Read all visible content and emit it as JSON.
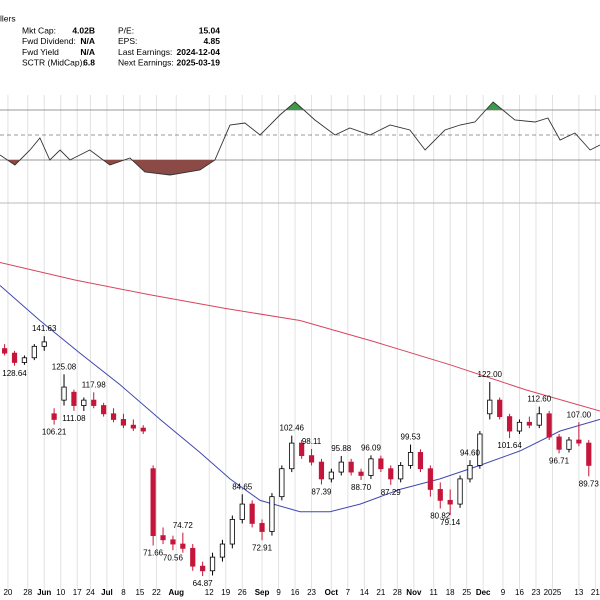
{
  "header": {
    "symbol_fragment": "llers",
    "stats_left": [
      {
        "label": "Mkt Cap:",
        "value": "4.02B"
      },
      {
        "label": "Fwd Dividend:",
        "value": "N/A"
      },
      {
        "label": "Fwd Yield",
        "value": "N/A"
      },
      {
        "label": "SCTR (MidCap):",
        "value": "6.8"
      }
    ],
    "stats_right": [
      {
        "label": "P/E:",
        "value": "15.04"
      },
      {
        "label": "EPS:",
        "value": "4.85"
      },
      {
        "label": "Last Earnings:",
        "value": "2024-12-04"
      },
      {
        "label": "Next Earnings:",
        "value": "2025-03-19"
      }
    ]
  },
  "chart_data": {
    "type": "candlestick",
    "x": [
      -1,
      2,
      5,
      8,
      11,
      14,
      17,
      20,
      23,
      26,
      29,
      32,
      35,
      38,
      41,
      44,
      47,
      50,
      53,
      56,
      59,
      62,
      65,
      68,
      71,
      74,
      77,
      80,
      83,
      86,
      89,
      92,
      95,
      98,
      101,
      104,
      107,
      110,
      113,
      116,
      119,
      122,
      125,
      128,
      131,
      134,
      137,
      140,
      143,
      146,
      149,
      152,
      155,
      158,
      161,
      164,
      167,
      170,
      173,
      176
    ],
    "open": [
      136,
      134,
      130,
      132,
      137,
      110,
      115,
      118,
      113,
      115,
      113,
      110,
      108,
      106,
      105,
      92,
      74,
      73,
      72,
      71,
      67,
      66,
      69,
      72,
      78,
      82,
      77,
      75,
      84,
      92,
      100,
      96,
      94,
      89,
      91,
      94,
      91,
      90,
      95,
      92,
      89,
      93,
      97,
      92,
      86,
      83,
      82,
      89,
      93,
      110,
      115,
      109,
      104,
      107,
      106,
      110,
      102,
      98,
      101,
      100
    ],
    "high": [
      138,
      135,
      133,
      138,
      141.63,
      112,
      125.08,
      119,
      116,
      117.98,
      114,
      112,
      110,
      108,
      106,
      93,
      76,
      74,
      74.72,
      72,
      68,
      70,
      73,
      79,
      84.65,
      83,
      78,
      85,
      93,
      102.46,
      101,
      98.11,
      95,
      92,
      95.88,
      95,
      92,
      96.09,
      96,
      93,
      94,
      99.53,
      98,
      93,
      88,
      86,
      90,
      94.6,
      104,
      122.0,
      116,
      110,
      108,
      109,
      112.6,
      111,
      103,
      102,
      107.0,
      101
    ],
    "low": [
      133,
      128.64,
      129,
      131,
      135,
      106.21,
      113,
      111.08,
      111,
      112,
      109,
      107,
      105,
      104,
      103,
      71.66,
      72,
      70.56,
      70,
      66,
      64.87,
      65,
      68,
      71,
      77,
      76,
      72.91,
      74,
      83,
      91,
      95,
      93,
      87.39,
      88,
      90,
      90,
      88.7,
      89,
      91,
      87.29,
      88,
      92,
      91,
      84,
      80.82,
      79.14,
      81,
      88,
      92,
      108,
      108,
      101.64,
      103,
      105,
      105,
      101,
      96.71,
      97,
      99,
      89.73
    ],
    "close": [
      134,
      130,
      132,
      137,
      139,
      108,
      120,
      113,
      115,
      113,
      110,
      108,
      106,
      105,
      104,
      74,
      73,
      72,
      71,
      67,
      66,
      69,
      72,
      78,
      82,
      77,
      75,
      84,
      92,
      100,
      96,
      94,
      89,
      91,
      94,
      91,
      90,
      95,
      92,
      89,
      93,
      97,
      92,
      86,
      83,
      82,
      89,
      93,
      103,
      115,
      109,
      104,
      107,
      106,
      110,
      102,
      98,
      101,
      100,
      93
    ],
    "up_color": "#000000",
    "down_color": "#c4163a",
    "price_labels": {
      "x": [
        2,
        11,
        14,
        17,
        20,
        26,
        44,
        50,
        53,
        59,
        71,
        77,
        86,
        92,
        95,
        101,
        107,
        110,
        116,
        122,
        131,
        134,
        140,
        146,
        152,
        161,
        167,
        173,
        176
      ],
      "values": [
        128.64,
        141.63,
        106.21,
        125.08,
        111.08,
        117.98,
        71.66,
        70.56,
        74.72,
        64.87,
        84.65,
        72.91,
        102.46,
        98.11,
        87.39,
        95.88,
        88.7,
        96.09,
        87.29,
        99.53,
        80.82,
        79.14,
        94.6,
        122.0,
        101.64,
        112.6,
        96.71,
        107.0,
        89.73
      ],
      "value_labels": [
        "128.64",
        "141.63",
        "106.21",
        "125.08",
        "111.08",
        "117.98",
        "71.66",
        "70.56",
        "74.72",
        "64.87",
        "84.65",
        "72.91",
        "102.46",
        "98.11",
        "87.39",
        "95.88",
        "88.70",
        "96.09",
        "87.29",
        "99.53",
        "80.82",
        "79.14",
        "94.60",
        "122.00",
        "101.64",
        "112.60",
        "96.71",
        "107.00",
        "89.73"
      ]
    },
    "moving_averages": [
      {
        "color": "#d9455f",
        "x": [
          -2.4,
          20.3,
          43,
          65.8,
          88.5,
          111.2,
          134,
          156.7,
          179.4
        ],
        "values": [
          180,
          170,
          162,
          155,
          149,
          139,
          129,
          119,
          111
        ]
      },
      {
        "color": "#3f48b0",
        "x": [
          -2.4,
          9.7,
          21.8,
          33.9,
          46.1,
          58.2,
          67.3,
          76.4,
          88.5,
          97.6,
          106.7,
          118.8,
          130.9,
          143,
          155.2,
          167.3,
          179.4
        ],
        "values": [
          167,
          149,
          134,
          121,
          108,
          97,
          89,
          83,
          80,
          80,
          82,
          86,
          89,
          93,
          97.5,
          104,
          108
        ]
      }
    ],
    "ylim": [
      62,
      217
    ],
    "log_scale": true,
    "xlim": [
      -2.4,
      179.4
    ],
    "xticks": [
      {
        "value": 0,
        "label": "20"
      },
      {
        "value": 6,
        "label": "28"
      },
      {
        "value": 11,
        "label": "Jun"
      },
      {
        "value": 16,
        "label": "10"
      },
      {
        "value": 21,
        "label": "17"
      },
      {
        "value": 25,
        "label": "24"
      },
      {
        "value": 30,
        "label": "Jul"
      },
      {
        "value": 35,
        "label": "8"
      },
      {
        "value": 40,
        "label": "15"
      },
      {
        "value": 45,
        "label": "22"
      },
      {
        "value": 51,
        "label": "Aug"
      },
      {
        "value": 61,
        "label": "12"
      },
      {
        "value": 66,
        "label": "19"
      },
      {
        "value": 71,
        "label": "26"
      },
      {
        "value": 77,
        "label": "Sep"
      },
      {
        "value": 82,
        "label": "9"
      },
      {
        "value": 87,
        "label": "16"
      },
      {
        "value": 92,
        "label": "23"
      },
      {
        "value": 98,
        "label": "Oct"
      },
      {
        "value": 103,
        "label": "7"
      },
      {
        "value": 108,
        "label": "14"
      },
      {
        "value": 113,
        "label": "21"
      },
      {
        "value": 118,
        "label": "28"
      },
      {
        "value": 123,
        "label": "Nov"
      },
      {
        "value": 129,
        "label": "11"
      },
      {
        "value": 134,
        "label": "18"
      },
      {
        "value": 139,
        "label": "25"
      },
      {
        "value": 144,
        "label": "Dec"
      },
      {
        "value": 150,
        "label": "9"
      },
      {
        "value": 155,
        "label": "16"
      },
      {
        "value": 160,
        "label": "23"
      },
      {
        "value": 165,
        "label": "2025"
      },
      {
        "value": 173,
        "label": "13"
      },
      {
        "value": 178,
        "label": "21"
      }
    ],
    "grid": true,
    "rsi": {
      "color": "#333333",
      "overbought_color": "#3c9a4a",
      "oversold_color": "#8b4a45",
      "ylim": [
        -2,
        82
      ],
      "levels": [
        30,
        50,
        70
      ],
      "x": [
        -2.4,
        2.1,
        6.7,
        9.7,
        12.7,
        15.8,
        18.8,
        24.8,
        30.9,
        37,
        41.5,
        49.1,
        58.2,
        62.7,
        67.3,
        71.8,
        76.4,
        82.4,
        87,
        93,
        99.1,
        103.6,
        109.7,
        115.8,
        121.8,
        126.4,
        132.4,
        137,
        141.5,
        147,
        153.6,
        159.7,
        163.6,
        167.3,
        171.8,
        176.4,
        179.4
      ],
      "values": [
        34,
        26,
        38,
        47.6,
        30,
        38,
        30,
        38,
        26,
        31.6,
        20.4,
        18,
        22,
        30,
        58,
        59.6,
        50,
        66,
        76.4,
        62,
        50,
        55.6,
        50,
        58,
        54,
        38,
        54,
        58,
        60.4,
        76.4,
        62,
        60.4,
        63.6,
        46,
        51.6,
        38,
        42
      ]
    }
  }
}
